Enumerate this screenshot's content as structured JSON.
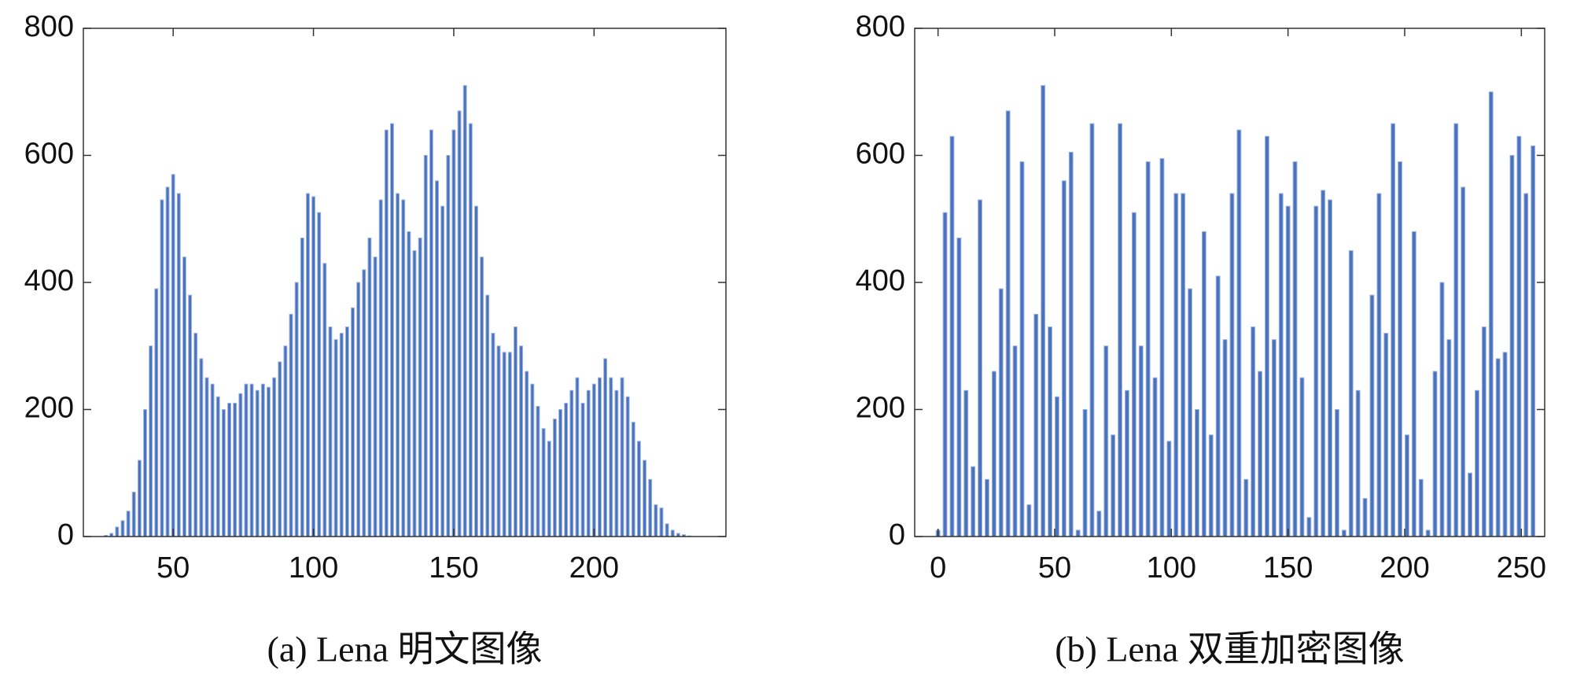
{
  "chart_data": [
    {
      "type": "bar",
      "title": "(a) Lena 明文图像",
      "color": "#4a72bf",
      "x": [
        26,
        28,
        30,
        32,
        34,
        36,
        38,
        40,
        42,
        44,
        46,
        48,
        50,
        52,
        54,
        56,
        58,
        60,
        62,
        64,
        66,
        68,
        70,
        72,
        74,
        76,
        78,
        80,
        82,
        84,
        86,
        88,
        90,
        92,
        94,
        96,
        98,
        100,
        102,
        104,
        106,
        108,
        110,
        112,
        114,
        116,
        118,
        120,
        122,
        124,
        126,
        128,
        130,
        132,
        134,
        136,
        138,
        140,
        142,
        144,
        146,
        148,
        150,
        152,
        154,
        156,
        158,
        160,
        162,
        164,
        166,
        168,
        170,
        172,
        174,
        176,
        178,
        180,
        182,
        184,
        186,
        188,
        190,
        192,
        194,
        196,
        198,
        200,
        202,
        204,
        206,
        208,
        210,
        212,
        214,
        216,
        218,
        220,
        222,
        224,
        226,
        228,
        230,
        232,
        234
      ],
      "values": [
        2,
        5,
        15,
        25,
        40,
        70,
        120,
        200,
        300,
        390,
        530,
        550,
        570,
        540,
        440,
        380,
        320,
        280,
        250,
        240,
        220,
        200,
        210,
        210,
        225,
        240,
        240,
        230,
        240,
        235,
        250,
        275,
        300,
        350,
        400,
        470,
        540,
        535,
        510,
        430,
        330,
        310,
        320,
        330,
        360,
        400,
        420,
        470,
        440,
        530,
        640,
        650,
        540,
        530,
        480,
        450,
        470,
        600,
        640,
        560,
        520,
        600,
        640,
        670,
        710,
        650,
        520,
        440,
        380,
        320,
        300,
        290,
        290,
        330,
        300,
        260,
        240,
        205,
        170,
        150,
        185,
        200,
        210,
        230,
        250,
        210,
        230,
        240,
        250,
        280,
        250,
        230,
        250,
        220,
        180,
        150,
        120,
        90,
        50,
        45,
        20,
        10,
        5,
        3,
        1
      ],
      "xlim": [
        18,
        247
      ],
      "xticks": [
        50,
        100,
        150,
        200
      ],
      "ylim": [
        0,
        800
      ],
      "yticks": [
        0,
        200,
        400,
        600,
        800
      ]
    },
    {
      "type": "bar",
      "title": "(b) Lena 双重加密图像",
      "color": "#4a72bf",
      "x": [
        0,
        3,
        6,
        9,
        12,
        15,
        18,
        21,
        24,
        27,
        30,
        33,
        36,
        39,
        42,
        45,
        48,
        51,
        54,
        57,
        60,
        63,
        66,
        69,
        72,
        75,
        78,
        81,
        84,
        87,
        90,
        93,
        96,
        99,
        102,
        105,
        108,
        111,
        114,
        117,
        120,
        123,
        126,
        129,
        132,
        135,
        138,
        141,
        144,
        147,
        150,
        153,
        156,
        159,
        162,
        165,
        168,
        171,
        174,
        177,
        180,
        183,
        186,
        189,
        192,
        195,
        198,
        201,
        204,
        207,
        210,
        213,
        216,
        219,
        222,
        225,
        228,
        231,
        234,
        237,
        240,
        243,
        246,
        249,
        252,
        255
      ],
      "values": [
        10,
        510,
        630,
        470,
        230,
        110,
        530,
        90,
        260,
        390,
        670,
        300,
        590,
        50,
        350,
        710,
        330,
        220,
        560,
        605,
        10,
        200,
        650,
        40,
        300,
        160,
        650,
        230,
        510,
        300,
        590,
        250,
        595,
        150,
        540,
        540,
        390,
        200,
        480,
        160,
        410,
        310,
        540,
        640,
        90,
        330,
        260,
        630,
        310,
        540,
        520,
        590,
        250,
        30,
        520,
        545,
        530,
        200,
        10,
        450,
        230,
        60,
        380,
        540,
        320,
        650,
        590,
        160,
        480,
        90,
        10,
        260,
        400,
        310,
        650,
        550,
        100,
        230,
        330,
        700,
        280,
        290,
        600,
        630,
        540,
        615
      ],
      "xlim": [
        -10,
        260
      ],
      "xticks": [
        0,
        50,
        100,
        150,
        200,
        250
      ],
      "ylim": [
        0,
        800
      ],
      "yticks": [
        0,
        200,
        400,
        600,
        800
      ]
    }
  ]
}
